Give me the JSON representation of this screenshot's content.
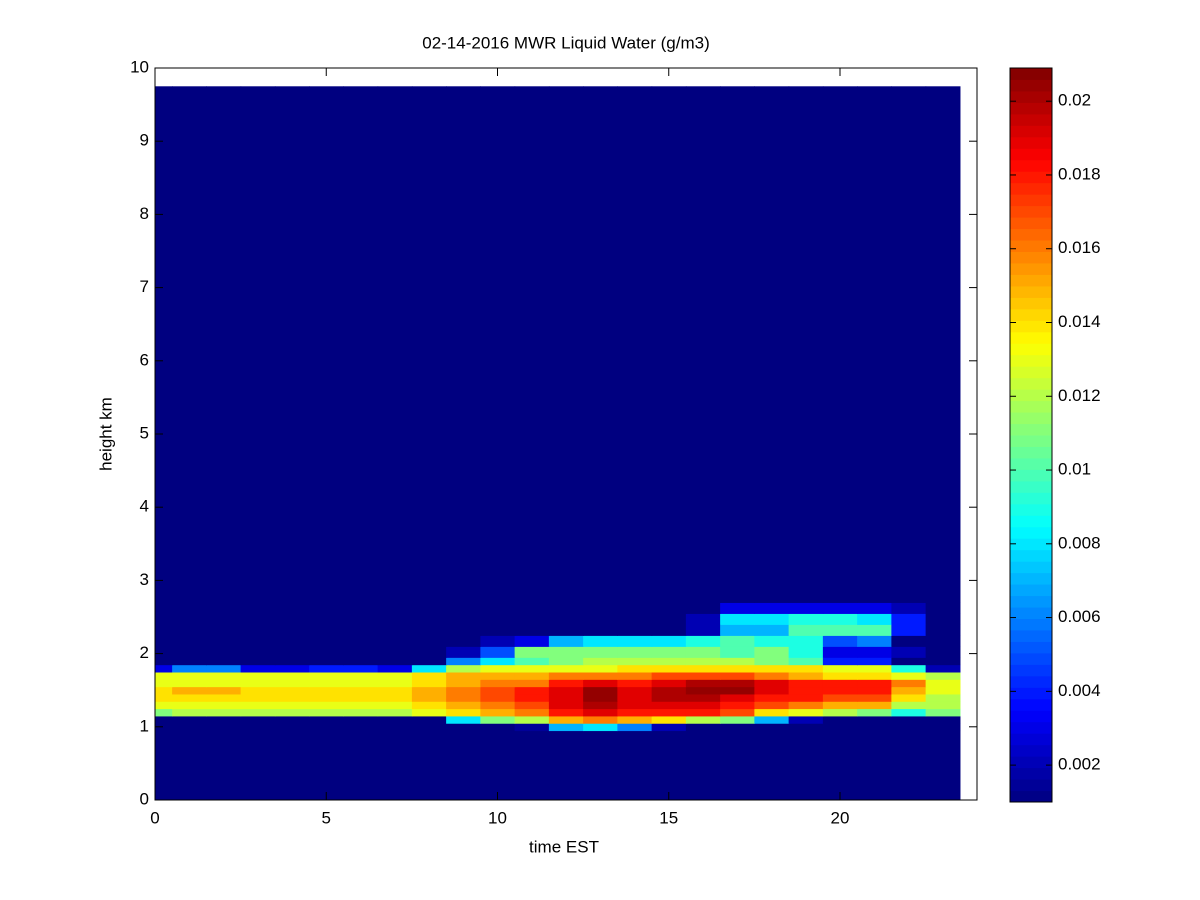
{
  "chart_data": {
    "type": "heatmap",
    "title": "02-14-2016 MWR Liquid Water (g/m3)",
    "x_label": "time EST",
    "y_label": "height km",
    "x": [
      0,
      1,
      2,
      3,
      4,
      5,
      6,
      7,
      8,
      9,
      10,
      11,
      12,
      13,
      14,
      15,
      16,
      17,
      18,
      19,
      20,
      21,
      22,
      23
    ],
    "y_bins": [
      0,
      0.95,
      1.05,
      1.15,
      1.25,
      1.35,
      1.45,
      1.55,
      1.65,
      1.75,
      1.85,
      1.95,
      2.1,
      2.25,
      2.4,
      2.55,
      2.7,
      9.75
    ],
    "values": [
      [
        0.001,
        0.001,
        0.001,
        0.001,
        0.001,
        0.001,
        0.001,
        0.001,
        0.001,
        0.001,
        0.001,
        0.001,
        0.001,
        0.001,
        0.001,
        0.001,
        0.001,
        0.001,
        0.001,
        0.001,
        0.001,
        0.001,
        0.001,
        0.001
      ],
      [
        0.001,
        0.001,
        0.001,
        0.001,
        0.001,
        0.001,
        0.001,
        0.001,
        0.001,
        0.001,
        0.001,
        0.0015,
        0.007,
        0.008,
        0.006,
        0.002,
        0.001,
        0.001,
        0.001,
        0.001,
        0.001,
        0.001,
        0.001,
        0.001
      ],
      [
        0.001,
        0.001,
        0.001,
        0.001,
        0.001,
        0.001,
        0.001,
        0.001,
        0.001,
        0.008,
        0.011,
        0.012,
        0.015,
        0.016,
        0.015,
        0.014,
        0.012,
        0.011,
        0.007,
        0.002,
        0.001,
        0.001,
        0.001,
        0.001
      ],
      [
        0.011,
        0.012,
        0.012,
        0.012,
        0.012,
        0.012,
        0.012,
        0.012,
        0.013,
        0.014,
        0.015,
        0.016,
        0.018,
        0.019,
        0.018,
        0.018,
        0.018,
        0.017,
        0.014,
        0.013,
        0.012,
        0.011,
        0.009,
        0.011
      ],
      [
        0.013,
        0.013,
        0.013,
        0.013,
        0.013,
        0.013,
        0.013,
        0.013,
        0.014,
        0.015,
        0.016,
        0.017,
        0.019,
        0.02,
        0.019,
        0.019,
        0.019,
        0.018,
        0.017,
        0.016,
        0.015,
        0.015,
        0.012,
        0.012
      ],
      [
        0.014,
        0.014,
        0.014,
        0.014,
        0.014,
        0.014,
        0.014,
        0.014,
        0.015,
        0.016,
        0.017,
        0.018,
        0.019,
        0.0205,
        0.019,
        0.02,
        0.02,
        0.019,
        0.018,
        0.018,
        0.017,
        0.017,
        0.014,
        0.012
      ],
      [
        0.014,
        0.015,
        0.015,
        0.014,
        0.014,
        0.014,
        0.014,
        0.014,
        0.015,
        0.016,
        0.017,
        0.018,
        0.019,
        0.0205,
        0.019,
        0.02,
        0.0205,
        0.0205,
        0.019,
        0.018,
        0.018,
        0.018,
        0.015,
        0.013
      ],
      [
        0.013,
        0.013,
        0.013,
        0.013,
        0.013,
        0.013,
        0.013,
        0.013,
        0.014,
        0.015,
        0.016,
        0.016,
        0.018,
        0.019,
        0.018,
        0.019,
        0.02,
        0.02,
        0.019,
        0.018,
        0.018,
        0.018,
        0.016,
        0.013
      ],
      [
        0.013,
        0.013,
        0.013,
        0.013,
        0.013,
        0.013,
        0.013,
        0.013,
        0.014,
        0.015,
        0.015,
        0.015,
        0.016,
        0.016,
        0.016,
        0.017,
        0.017,
        0.017,
        0.016,
        0.015,
        0.014,
        0.014,
        0.013,
        0.012
      ],
      [
        0.003,
        0.006,
        0.006,
        0.003,
        0.003,
        0.004,
        0.004,
        0.003,
        0.008,
        0.012,
        0.013,
        0.013,
        0.013,
        0.013,
        0.014,
        0.014,
        0.014,
        0.014,
        0.014,
        0.014,
        0.013,
        0.013,
        0.009,
        0.002
      ],
      [
        0.001,
        0.001,
        0.001,
        0.001,
        0.001,
        0.001,
        0.001,
        0.001,
        0.001,
        0.006,
        0.008,
        0.01,
        0.011,
        0.012,
        0.012,
        0.012,
        0.012,
        0.012,
        0.011,
        0.01,
        0.004,
        0.004,
        0.001,
        0.001
      ],
      [
        0.001,
        0.001,
        0.001,
        0.001,
        0.001,
        0.001,
        0.001,
        0.001,
        0.001,
        0.002,
        0.005,
        0.011,
        0.011,
        0.011,
        0.011,
        0.011,
        0.011,
        0.01,
        0.011,
        0.009,
        0.003,
        0.003,
        0.002,
        0.001
      ],
      [
        0.001,
        0.001,
        0.001,
        0.001,
        0.001,
        0.001,
        0.001,
        0.001,
        0.001,
        0.001,
        0.002,
        0.003,
        0.007,
        0.008,
        0.008,
        0.008,
        0.009,
        0.01,
        0.009,
        0.009,
        0.005,
        0.006,
        0.001,
        0.001
      ],
      [
        0.001,
        0.001,
        0.001,
        0.001,
        0.001,
        0.001,
        0.001,
        0.001,
        0.001,
        0.001,
        0.001,
        0.001,
        0.001,
        0.001,
        0.001,
        0.001,
        0.002,
        0.007,
        0.007,
        0.01,
        0.01,
        0.01,
        0.004,
        0.001
      ],
      [
        0.001,
        0.001,
        0.001,
        0.001,
        0.001,
        0.001,
        0.001,
        0.001,
        0.001,
        0.001,
        0.001,
        0.001,
        0.001,
        0.001,
        0.001,
        0.001,
        0.002,
        0.008,
        0.008,
        0.009,
        0.009,
        0.008,
        0.004,
        0.001
      ],
      [
        0.001,
        0.001,
        0.001,
        0.001,
        0.001,
        0.001,
        0.001,
        0.001,
        0.001,
        0.001,
        0.001,
        0.001,
        0.001,
        0.001,
        0.001,
        0.001,
        0.001,
        0.003,
        0.003,
        0.003,
        0.003,
        0.003,
        0.002,
        0.001
      ],
      [
        0.001,
        0.001,
        0.001,
        0.001,
        0.001,
        0.001,
        0.001,
        0.001,
        0.001,
        0.001,
        0.001,
        0.001,
        0.001,
        0.001,
        0.001,
        0.001,
        0.001,
        0.001,
        0.001,
        0.001,
        0.001,
        0.001,
        0.001,
        0.001
      ]
    ],
    "xlim": [
      0,
      24
    ],
    "xticks": [
      0,
      5,
      10,
      15,
      20
    ],
    "ylim": [
      0,
      10
    ],
    "yticks": [
      0,
      1,
      2,
      3,
      4,
      5,
      6,
      7,
      8,
      9,
      10
    ],
    "colormap": "jet",
    "clim": [
      0.001,
      0.0209
    ],
    "cticks": [
      0.002,
      0.004,
      0.006,
      0.008,
      0.01,
      0.012,
      0.014,
      0.016,
      0.018,
      0.02
    ]
  }
}
